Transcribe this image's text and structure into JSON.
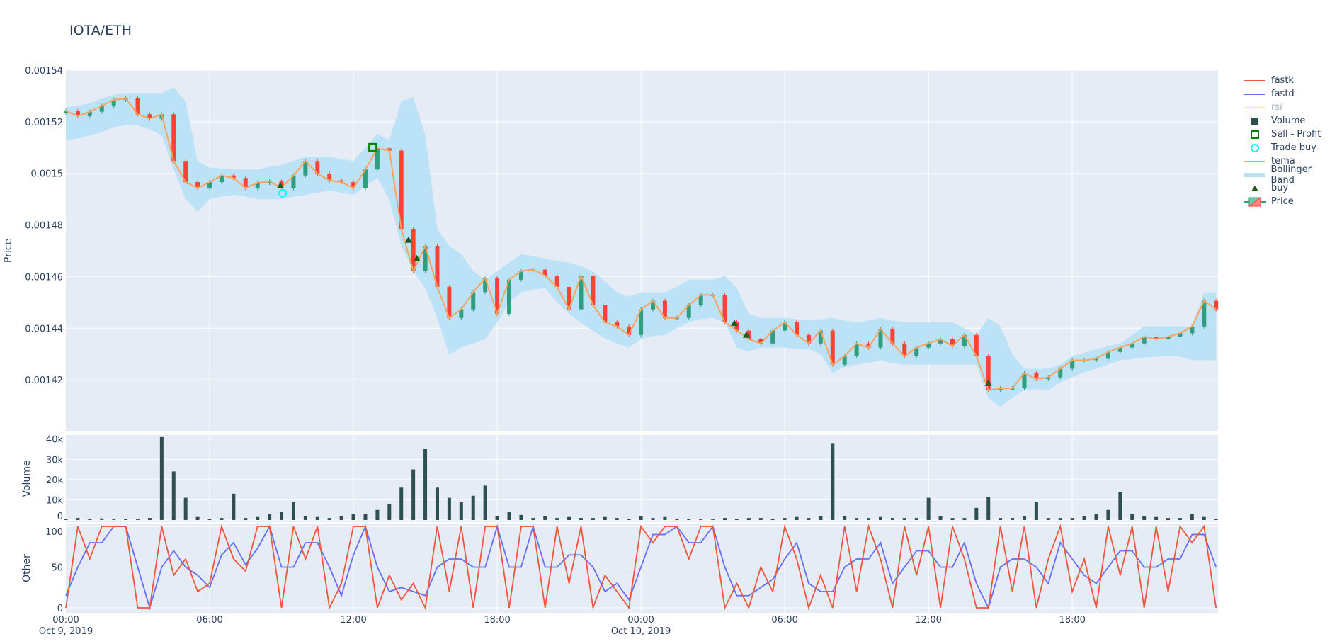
{
  "title": "IOTA/ETH",
  "legend": [
    {
      "label": "fastk",
      "symbol": "line",
      "color": "#ef553b"
    },
    {
      "label": "fastd",
      "symbol": "line",
      "color": "#636efa"
    },
    {
      "label": "rsi",
      "symbol": "line",
      "color": "#fde2b0",
      "hidden": true
    },
    {
      "label": "Volume",
      "symbol": "square",
      "color": "#2f4f4f"
    },
    {
      "label": "Sell - Profit",
      "symbol": "square-open",
      "color": "#008000"
    },
    {
      "label": "Trade buy",
      "symbol": "circle-open",
      "color": "#00ffff"
    },
    {
      "label": "tema",
      "symbol": "line",
      "color": "#ffa15a"
    },
    {
      "label": "Bollinger Band",
      "symbol": "band",
      "color": "#b8e2f7"
    },
    {
      "label": "buy",
      "symbol": "triangle-up",
      "color": "#1b5e20"
    },
    {
      "label": "Price",
      "symbol": "candle",
      "color": "#2e9e7f"
    }
  ],
  "chart_data": {
    "type": "candlestick",
    "title": "IOTA/ETH",
    "grid": true,
    "legend_position": "right",
    "colors": {
      "increasing": "#2e9e7f",
      "decreasing": "#ff4136",
      "band": "#b8e2f7",
      "tema": "#ffa15a",
      "volume": "#2f4f4f",
      "fastk": "#ef553b",
      "fastd": "#636efa",
      "buy": "#1b5e20",
      "trade_buy": "#00ffff",
      "sell_profit": "#008000",
      "plot_bg": "#e5ecf6"
    },
    "xrange": [
      "2019-10-09 00:00",
      "2019-10-11 00:05"
    ],
    "x_ticks": [
      {
        "t": "2019-10-09 00:00",
        "label": "00:00",
        "date": "Oct 9, 2019"
      },
      {
        "t": "2019-10-09 06:00",
        "label": "06:00"
      },
      {
        "t": "2019-10-09 12:00",
        "label": "12:00"
      },
      {
        "t": "2019-10-09 18:00",
        "label": "18:00"
      },
      {
        "t": "2019-10-10 00:00",
        "label": "00:00",
        "date": "Oct 10, 2019"
      },
      {
        "t": "2019-10-10 06:00",
        "label": "06:00"
      },
      {
        "t": "2019-10-10 12:00",
        "label": "12:00"
      },
      {
        "t": "2019-10-10 18:00",
        "label": "18:00"
      }
    ],
    "panels": {
      "price": {
        "ylabel": "Price",
        "ylim": [
          0.0014,
          0.00154
        ],
        "ticks": [
          {
            "v": 0.00154,
            "label": "0.00154"
          },
          {
            "v": 0.00152,
            "label": "0.00152"
          },
          {
            "v": 0.0015,
            "label": "0.0015"
          },
          {
            "v": 0.00148,
            "label": "0.00148"
          },
          {
            "v": 0.00146,
            "label": "0.00146"
          },
          {
            "v": 0.00144,
            "label": "0.00144"
          },
          {
            "v": 0.00142,
            "label": "0.00142"
          }
        ]
      },
      "volume": {
        "ylabel": "Volume",
        "ylim": [
          0,
          42000
        ],
        "ticks": [
          {
            "v": 40000,
            "label": "40k"
          },
          {
            "v": 30000,
            "label": "30k"
          },
          {
            "v": 20000,
            "label": "20k"
          },
          {
            "v": 10000,
            "label": "10k"
          },
          {
            "v": 0,
            "label": "0"
          }
        ]
      },
      "other": {
        "ylabel": "Other",
        "ylim": [
          -4,
          100
        ],
        "ticks": [
          {
            "v": 100,
            "label": "100"
          },
          {
            "v": 50,
            "label": "50"
          },
          {
            "v": 0,
            "label": "0"
          }
        ]
      }
    },
    "time": [
      "2019-10-09 00:00",
      "2019-10-09 00:30",
      "2019-10-09 01:00",
      "2019-10-09 01:30",
      "2019-10-09 02:00",
      "2019-10-09 02:30",
      "2019-10-09 03:00",
      "2019-10-09 03:30",
      "2019-10-09 04:00",
      "2019-10-09 04:30",
      "2019-10-09 05:00",
      "2019-10-09 05:30",
      "2019-10-09 06:00",
      "2019-10-09 06:30",
      "2019-10-09 07:00",
      "2019-10-09 07:30",
      "2019-10-09 08:00",
      "2019-10-09 08:30",
      "2019-10-09 09:00",
      "2019-10-09 09:30",
      "2019-10-09 10:00",
      "2019-10-09 10:30",
      "2019-10-09 11:00",
      "2019-10-09 11:30",
      "2019-10-09 12:00",
      "2019-10-09 12:30",
      "2019-10-09 13:00",
      "2019-10-09 13:30",
      "2019-10-09 14:00",
      "2019-10-09 14:30",
      "2019-10-09 15:00",
      "2019-10-09 15:30",
      "2019-10-09 16:00",
      "2019-10-09 16:30",
      "2019-10-09 17:00",
      "2019-10-09 17:30",
      "2019-10-09 18:00",
      "2019-10-09 18:30",
      "2019-10-09 19:00",
      "2019-10-09 19:30",
      "2019-10-09 20:00",
      "2019-10-09 20:30",
      "2019-10-09 21:00",
      "2019-10-09 21:30",
      "2019-10-09 22:00",
      "2019-10-09 22:30",
      "2019-10-09 23:00",
      "2019-10-09 23:30",
      "2019-10-10 00:00",
      "2019-10-10 00:30",
      "2019-10-10 01:00",
      "2019-10-10 01:30",
      "2019-10-10 02:00",
      "2019-10-10 02:30",
      "2019-10-10 03:00",
      "2019-10-10 03:30",
      "2019-10-10 04:00",
      "2019-10-10 04:30",
      "2019-10-10 05:00",
      "2019-10-10 05:30",
      "2019-10-10 06:00",
      "2019-10-10 06:30",
      "2019-10-10 07:00",
      "2019-10-10 07:30",
      "2019-10-10 08:00",
      "2019-10-10 08:30",
      "2019-10-10 09:00",
      "2019-10-10 09:30",
      "2019-10-10 10:00",
      "2019-10-10 10:30",
      "2019-10-10 11:00",
      "2019-10-10 11:30",
      "2019-10-10 12:00",
      "2019-10-10 12:30",
      "2019-10-10 13:00",
      "2019-10-10 13:30",
      "2019-10-10 14:00",
      "2019-10-10 14:30",
      "2019-10-10 15:00",
      "2019-10-10 15:30",
      "2019-10-10 16:00",
      "2019-10-10 16:30",
      "2019-10-10 17:00",
      "2019-10-10 17:30",
      "2019-10-10 18:00",
      "2019-10-10 18:30",
      "2019-10-10 19:00",
      "2019-10-10 19:30",
      "2019-10-10 20:00",
      "2019-10-10 20:30",
      "2019-10-10 21:00",
      "2019-10-10 21:30",
      "2019-10-10 22:00",
      "2019-10-10 22:30",
      "2019-10-10 23:00",
      "2019-10-10 23:30",
      "2019-10-11 00:00"
    ],
    "close": [
      0.0015242,
      0.0015222,
      0.0015239,
      0.0015262,
      0.0015285,
      0.001529,
      0.0015229,
      0.0015212,
      0.0015229,
      0.0015048,
      0.0014966,
      0.0014943,
      0.0014966,
      0.0014992,
      0.0014982,
      0.0014943,
      0.0014963,
      0.0014969,
      0.0014943,
      0.0014992,
      0.0015048,
      0.0014999,
      0.0014973,
      0.0014966,
      0.0014943,
      0.0015015,
      0.0015097,
      0.0015088,
      0.0014785,
      0.0014621,
      0.0014719,
      0.001456,
      0.001444,
      0.0014473,
      0.001454,
      0.0014594,
      0.0014456,
      0.0014588,
      0.0014621,
      0.0014627,
      0.0014604,
      0.001456,
      0.0014473,
      0.0014604,
      0.0014489,
      0.0014423,
      0.0014407,
      0.0014374,
      0.0014473,
      0.0014506,
      0.001444,
      0.001444,
      0.0014489,
      0.0014529,
      0.0014529,
      0.0014423,
      0.0014391,
      0.0014358,
      0.0014341,
      0.0014391,
      0.0014423,
      0.0014374,
      0.0014341,
      0.0014391,
      0.0014259,
      0.0014292,
      0.0014341,
      0.0014325,
      0.0014397,
      0.0014341,
      0.0014292,
      0.0014325,
      0.0014341,
      0.0014358,
      0.0014331,
      0.0014374,
      0.0014292,
      0.001416,
      0.0014167,
      0.0014167,
      0.0014226,
      0.0014203,
      0.001421,
      0.0014243,
      0.0014276,
      0.0014276,
      0.0014282,
      0.0014308,
      0.0014325,
      0.0014341,
      0.0014367,
      0.0014358,
      0.0014367,
      0.0014381,
      0.0014407,
      0.0014506,
      0.0014473
    ],
    "tema": [
      0.0015242,
      0.0015222,
      0.0015239,
      0.0015262,
      0.0015285,
      0.001529,
      0.0015229,
      0.0015212,
      0.0015229,
      0.0015048,
      0.0014966,
      0.0014943,
      0.0014966,
      0.0014992,
      0.0014982,
      0.0014943,
      0.0014963,
      0.0014969,
      0.0014943,
      0.0014992,
      0.0015048,
      0.0014999,
      0.0014973,
      0.0014966,
      0.0014943,
      0.0015015,
      0.0015097,
      0.0015088,
      0.0014785,
      0.0014621,
      0.0014719,
      0.001456,
      0.001444,
      0.0014473,
      0.001454,
      0.0014594,
      0.0014456,
      0.0014588,
      0.0014621,
      0.0014627,
      0.0014604,
      0.001456,
      0.0014473,
      0.0014604,
      0.0014489,
      0.0014423,
      0.0014407,
      0.0014374,
      0.0014473,
      0.0014506,
      0.001444,
      0.001444,
      0.0014489,
      0.0014529,
      0.0014529,
      0.0014423,
      0.0014391,
      0.0014358,
      0.0014341,
      0.0014391,
      0.0014423,
      0.0014374,
      0.0014341,
      0.0014391,
      0.0014259,
      0.0014292,
      0.0014341,
      0.0014325,
      0.0014397,
      0.0014341,
      0.0014292,
      0.0014325,
      0.0014341,
      0.0014358,
      0.0014331,
      0.0014374,
      0.0014292,
      0.001416,
      0.0014167,
      0.0014167,
      0.0014226,
      0.0014203,
      0.001421,
      0.0014243,
      0.0014276,
      0.0014276,
      0.0014282,
      0.0014308,
      0.0014325,
      0.0014341,
      0.0014367,
      0.0014358,
      0.0014367,
      0.0014381,
      0.0014407,
      0.0014506,
      0.0014473
    ],
    "bb_upper": [
      0.0015255,
      0.0015262,
      0.0015272,
      0.001529,
      0.0015305,
      0.0015311,
      0.0015311,
      0.0015311,
      0.0015311,
      0.0015334,
      0.0015278,
      0.0015048,
      0.0015022,
      0.0015018,
      0.0015015,
      0.0015015,
      0.0015015,
      0.0015025,
      0.0015032,
      0.0015048,
      0.0015065,
      0.0015065,
      0.0015065,
      0.0015055,
      0.0015048,
      0.00151,
      0.0015153,
      0.001513,
      0.0015278,
      0.0015295,
      0.0015147,
      0.0014785,
      0.0014719,
      0.0014687,
      0.0014621,
      0.0014588,
      0.0014621,
      0.0014654,
      0.0014687,
      0.001468,
      0.001467,
      0.001466,
      0.0014654,
      0.001464,
      0.0014621,
      0.001458,
      0.0014539,
      0.0014522,
      0.0014539,
      0.0014539,
      0.0014539,
      0.001456,
      0.0014588,
      0.0014588,
      0.0014588,
      0.0014604,
      0.0014555,
      0.0014456,
      0.001444,
      0.001444,
      0.001444,
      0.0014435,
      0.001443,
      0.0014435,
      0.001444,
      0.001443,
      0.0014423,
      0.001443,
      0.001444,
      0.001443,
      0.0014423,
      0.0014423,
      0.0014423,
      0.0014423,
      0.0014423,
      0.00144,
      0.0014374,
      0.001444,
      0.0014407,
      0.00143,
      0.0014243,
      0.0014243,
      0.0014243,
      0.001426,
      0.0014292,
      0.0014305,
      0.0014318,
      0.001433,
      0.0014341,
      0.0014375,
      0.0014407,
      0.0014407,
      0.0014407,
      0.0014407,
      0.0014407,
      0.0014539,
      0.0014539
    ],
    "bb_lower": [
      0.001513,
      0.0015135,
      0.0015147,
      0.001516,
      0.001518,
      0.0015186,
      0.0015186,
      0.001517,
      0.0015147,
      0.0015015,
      0.00149,
      0.0014851,
      0.00149,
      0.001491,
      0.0014917,
      0.001491,
      0.00149,
      0.00149,
      0.00149,
      0.001491,
      0.0014917,
      0.0014925,
      0.0014933,
      0.0014925,
      0.0014917,
      0.001495,
      0.0014982,
      0.00149,
      0.0014719,
      0.0014621,
      0.0014555,
      0.001444,
      0.0014298,
      0.0014325,
      0.0014341,
      0.0014358,
      0.0014423,
      0.00145,
      0.0014539,
      0.001455,
      0.0014555,
      0.00145,
      0.0014456,
      0.001442,
      0.0014391,
      0.001436,
      0.0014341,
      0.0014325,
      0.0014358,
      0.001437,
      0.0014374,
      0.00144,
      0.0014423,
      0.0014435,
      0.001444,
      0.0014423,
      0.0014325,
      0.0014308,
      0.0014325,
      0.0014325,
      0.0014325,
      0.001432,
      0.0014318,
      0.00143,
      0.0014226,
      0.001425,
      0.0014259,
      0.0014265,
      0.0014276,
      0.0014265,
      0.0014259,
      0.0014259,
      0.0014259,
      0.0014259,
      0.0014259,
      0.0014259,
      0.0014259,
      0.0014128,
      0.0014095,
      0.001413,
      0.001416,
      0.0014165,
      0.001416,
      0.001419,
      0.001421,
      0.001423,
      0.0014243,
      0.001426,
      0.0014276,
      0.001428,
      0.0014286,
      0.001429,
      0.0014292,
      0.001429,
      0.0014276,
      0.0014276,
      0.0014276
    ],
    "volume": [
      500,
      1000,
      500,
      800,
      300,
      500,
      300,
      1000,
      41000,
      24000,
      11000,
      1500,
      500,
      1000,
      13000,
      1000,
      1500,
      3000,
      4000,
      9000,
      2000,
      1500,
      1000,
      2000,
      3000,
      3000,
      5000,
      8000,
      16000,
      25000,
      35000,
      16000,
      11000,
      9000,
      12000,
      17000,
      2000,
      4000,
      2500,
      1000,
      2000,
      1000,
      1500,
      1000,
      1000,
      1500,
      1000,
      500,
      2000,
      1000,
      1500,
      500,
      500,
      500,
      300,
      1000,
      500,
      1000,
      1000,
      500,
      1000,
      1500,
      1000,
      2000,
      38000,
      2000,
      1000,
      1000,
      1500,
      1000,
      1000,
      1000,
      11000,
      2000,
      1000,
      1000,
      6000,
      11500,
      1000,
      1000,
      2000,
      9000,
      1000,
      1000,
      1000,
      2000,
      3000,
      5000,
      14000,
      3000,
      2000,
      1500,
      1000,
      1000,
      3000,
      1500,
      500
    ],
    "fastk": [
      0,
      100,
      60,
      100,
      100,
      100,
      0,
      0,
      100,
      40,
      60,
      20,
      30,
      100,
      60,
      45,
      100,
      100,
      0,
      100,
      60,
      100,
      0,
      30,
      100,
      100,
      0,
      40,
      10,
      30,
      0,
      100,
      20,
      100,
      0,
      100,
      100,
      0,
      100,
      100,
      0,
      100,
      30,
      100,
      0,
      40,
      20,
      0,
      100,
      80,
      100,
      100,
      60,
      100,
      100,
      0,
      30,
      0,
      50,
      20,
      100,
      60,
      0,
      40,
      0,
      100,
      20,
      100,
      60,
      0,
      100,
      40,
      100,
      0,
      100,
      60,
      0,
      0,
      100,
      20,
      100,
      0,
      60,
      100,
      20,
      60,
      0,
      100,
      40,
      100,
      0,
      100,
      20,
      100,
      80,
      100,
      0
    ],
    "fastd": [
      15,
      50,
      80,
      80,
      100,
      100,
      50,
      0,
      50,
      70,
      50,
      40,
      25,
      65,
      80,
      53,
      73,
      100,
      50,
      50,
      80,
      80,
      50,
      15,
      65,
      100,
      50,
      20,
      25,
      20,
      15,
      50,
      60,
      60,
      50,
      50,
      100,
      50,
      50,
      100,
      50,
      50,
      65,
      65,
      50,
      20,
      30,
      10,
      50,
      90,
      90,
      100,
      80,
      80,
      100,
      50,
      15,
      15,
      25,
      35,
      60,
      80,
      30,
      20,
      20,
      50,
      60,
      60,
      80,
      30,
      50,
      70,
      70,
      50,
      50,
      80,
      30,
      0,
      50,
      60,
      60,
      50,
      30,
      80,
      60,
      40,
      30,
      50,
      70,
      70,
      50,
      50,
      60,
      60,
      90,
      90,
      50
    ],
    "buy_signals": [
      {
        "t": "2019-10-09 08:57",
        "price": 0.0014953
      },
      {
        "t": "2019-10-09 14:18",
        "price": 0.0014742
      },
      {
        "t": "2019-10-09 14:39",
        "price": 0.001467
      },
      {
        "t": "2019-10-10 03:54",
        "price": 0.001442
      },
      {
        "t": "2019-10-10 04:24",
        "price": 0.0014374
      },
      {
        "t": "2019-10-10 14:30",
        "price": 0.0014187
      }
    ],
    "trade_buys": [
      {
        "t": "2019-10-09 09:03",
        "price": 0.0014923
      }
    ],
    "sell_profits": [
      {
        "t": "2019-10-09 12:48",
        "price": 0.0015101
      }
    ]
  }
}
